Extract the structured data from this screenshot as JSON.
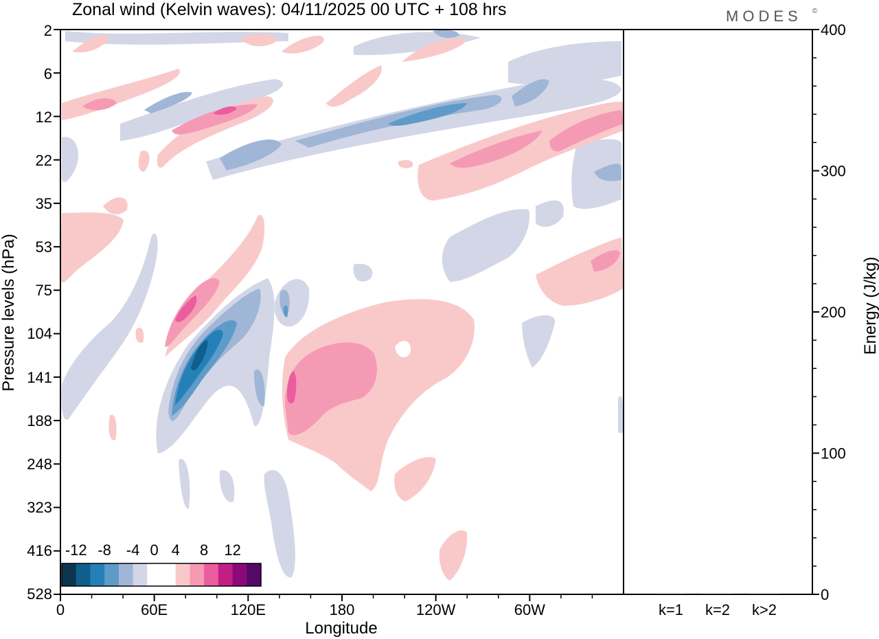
{
  "header": {
    "title": "Zonal wind (Kelvin waves):  04/11/2025  00 UTC  + 108 hrs",
    "brand": "MODES",
    "brand_mark": "©"
  },
  "chart_data": [
    {
      "type": "heatmap",
      "title": "Zonal wind (Kelvin waves):  04/11/2025  00 UTC  + 108 hrs",
      "xlabel": "Longitude",
      "ylabel": "Pressure levels (hPa)",
      "x_ticks": [
        "0",
        "60E",
        "120E",
        "180",
        "120W",
        "60W"
      ],
      "x_tick_degrees": [
        0,
        60,
        120,
        180,
        240,
        300
      ],
      "x_range_degrees": [
        0,
        360
      ],
      "y_ticks": [
        "2",
        "6",
        "12",
        "22",
        "35",
        "53",
        "75",
        "104",
        "141",
        "188",
        "248",
        "323",
        "416",
        "528"
      ],
      "colorbar": {
        "labels": [
          "-12",
          "-8",
          "-4",
          "0",
          "4",
          "8",
          "12"
        ],
        "label_at_boundary": [
          1,
          3,
          5,
          6.5,
          8,
          10,
          12
        ],
        "colors": [
          "#0e3550",
          "#0e5f8c",
          "#2680b8",
          "#5e9bc8",
          "#9fb6d6",
          "#d3d6e6",
          "#ffffff",
          "#ffffff",
          "#f9c9c9",
          "#f59ab5",
          "#ea5d9e",
          "#c21f85",
          "#8c0a77",
          "#560869"
        ]
      },
      "features": [
        {
          "sign": "negative",
          "level": 4,
          "lon": 80,
          "hpa": 135,
          "note": "strong easterly core 240-110 hPa"
        },
        {
          "sign": "negative",
          "level": 2,
          "lon": 140,
          "hpa": 95,
          "note": "weak easterly anomaly"
        },
        {
          "sign": "positive",
          "level": 3,
          "lon": 60,
          "hpa": 85,
          "note": "westerly band tilting upward"
        },
        {
          "sign": "positive",
          "level": 2,
          "lon": 160,
          "hpa": 140,
          "note": "broad westerly region 190-90 hPa"
        },
        {
          "sign": "positive",
          "level": 2,
          "lon": 300,
          "hpa": 20,
          "note": "upper westerly band"
        },
        {
          "sign": "negative",
          "level": 2,
          "lon": 220,
          "hpa": 12,
          "note": "upper easterly band"
        },
        {
          "sign": "positive",
          "level": 3,
          "lon": 100,
          "hpa": 12,
          "note": "upper westerly band"
        },
        {
          "sign": "positive",
          "level": 2,
          "lon": 350,
          "hpa": 60,
          "note": "westerly anomaly"
        },
        {
          "sign": "negative",
          "level": 1,
          "lon": 270,
          "hpa": 45,
          "note": "weak easterly anomaly"
        }
      ]
    },
    {
      "type": "bar",
      "title": "",
      "xlabel": "",
      "ylabel": "Energy (J/kg)",
      "categories": [
        "k=1",
        "k=2",
        "k>2"
      ],
      "values": [
        0.5,
        0.2,
        0.3
      ],
      "ylim": [
        0,
        400
      ],
      "y_ticks": [
        "0",
        "100",
        "200",
        "300",
        "400"
      ]
    }
  ]
}
